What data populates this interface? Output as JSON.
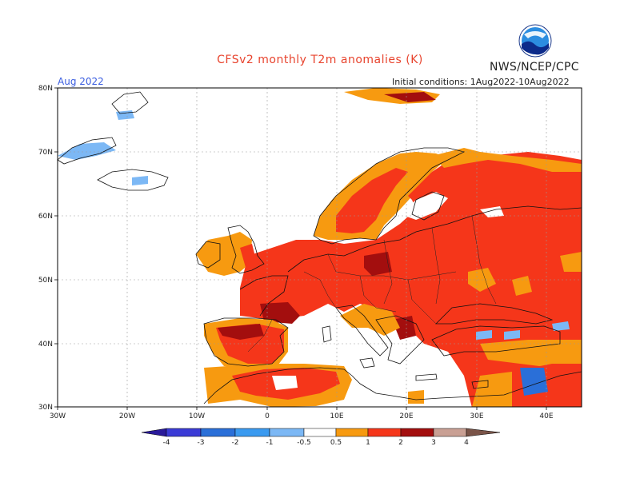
{
  "header": {
    "title": "CFSv2 monthly T2m anomalies (K)",
    "agency": "NWS/NCEP/CPC",
    "month": "Aug 2022",
    "initial_conditions": "Initial conditions: 1Aug2022-10Aug2022"
  },
  "map": {
    "extent": {
      "lon": [
        -30,
        45
      ],
      "lat": [
        30,
        80
      ]
    },
    "lat_labels": [
      "80N",
      "70N",
      "60N",
      "50N",
      "40N",
      "30N"
    ],
    "lon_labels": [
      "30W",
      "20W",
      "10W",
      "0",
      "10E",
      "20E",
      "30E",
      "40E"
    ],
    "grid": true,
    "dominant_anomaly": "warm (positive) over most of Europe"
  },
  "colorbar": {
    "labels": [
      "-4",
      "-3",
      "-2",
      "-1",
      "-0.5",
      "0.5",
      "1",
      "2",
      "3",
      "4"
    ],
    "colors": [
      "#2a1a9a",
      "#3b3bd6",
      "#2a6fd8",
      "#3a9af0",
      "#7cb8f5",
      "#ffffff",
      "#f79a10",
      "#f5361a",
      "#a30e0e",
      "#c9a094",
      "#7a5448"
    ]
  },
  "colors": {
    "orange": "#f79a10",
    "red": "#f5361a",
    "darkred": "#a30e0e",
    "lightblue": "#7cb8f5",
    "title": "#e8442e",
    "month": "#3a5de0"
  }
}
